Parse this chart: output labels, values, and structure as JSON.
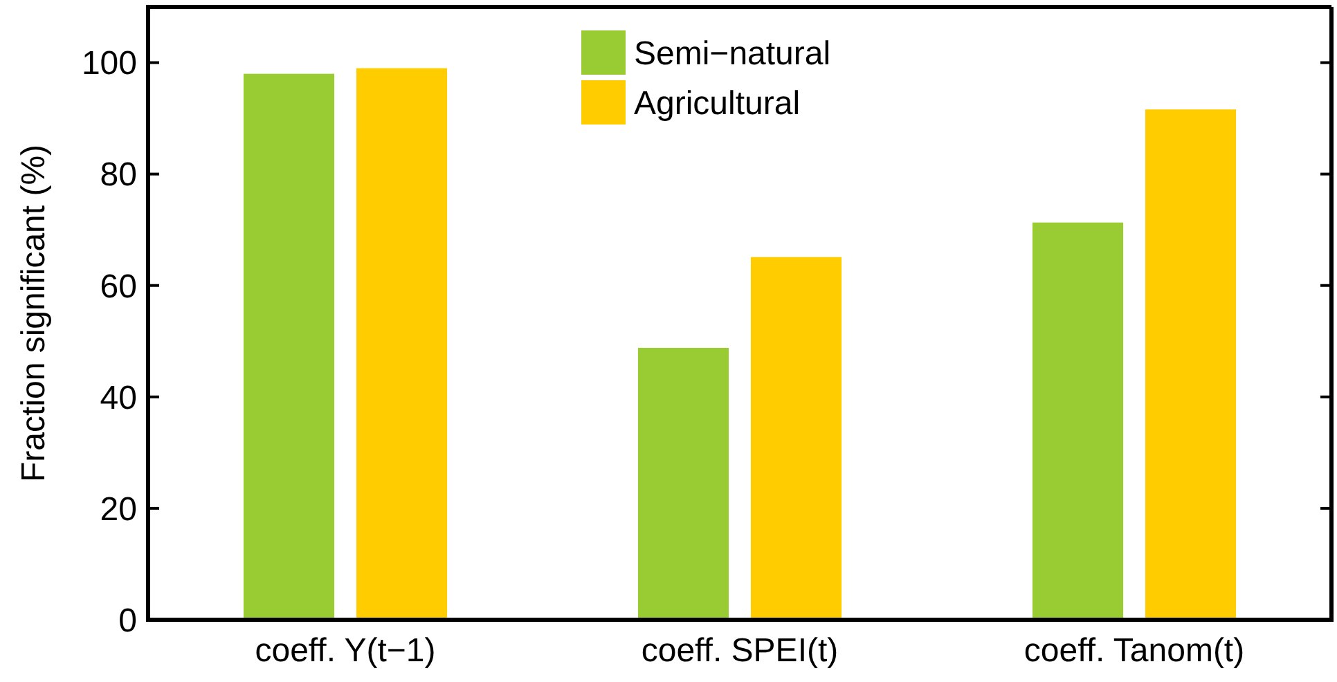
{
  "chart_data": {
    "type": "bar",
    "ylabel": "Fraction significant (%)",
    "categories": [
      "coeff. Y(t−1)",
      "coeff. SPEI(t)",
      "coeff. Tanom(t)"
    ],
    "series": [
      {
        "name": "Semi−natural",
        "color": "#99cc33",
        "values": [
          98,
          48.8,
          71.3
        ]
      },
      {
        "name": "Agricultural",
        "color": "#ffcc00",
        "values": [
          99,
          65.1,
          91.6
        ]
      }
    ],
    "ylim": [
      0,
      110
    ],
    "yticks": [
      0,
      20,
      40,
      60,
      80,
      100
    ],
    "grid": false,
    "legend": "top"
  }
}
